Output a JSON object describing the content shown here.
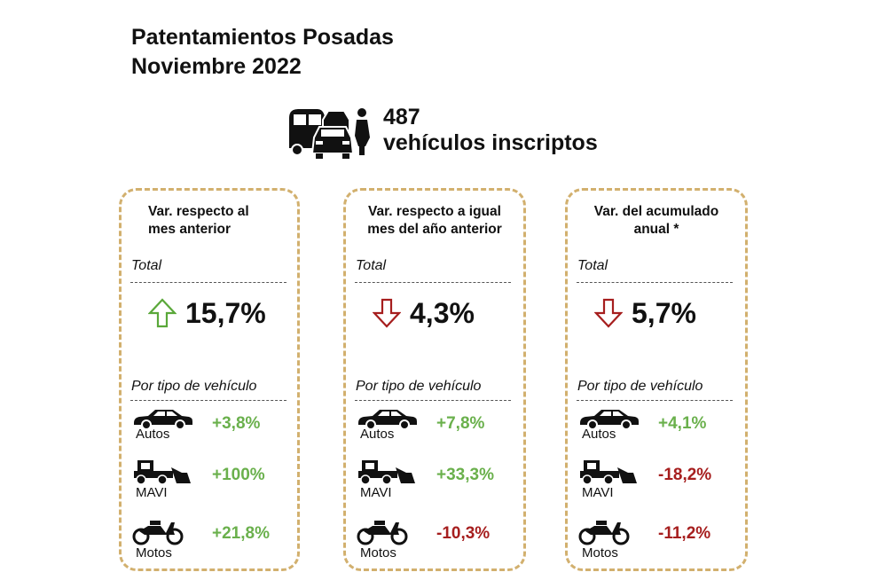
{
  "title": {
    "line1": "Patentamientos Posadas",
    "line2": "Noviembre 2022"
  },
  "summary": {
    "count": "487",
    "label": "vehículos inscriptos"
  },
  "colors": {
    "border": "#d2b06e",
    "positive": "#6ab04c",
    "negative": "#a61e1e",
    "arrow_up": "#5aa83a",
    "arrow_down": "#a61e1e"
  },
  "cards": [
    {
      "header_line1": "Var. respecto al",
      "header_line2": "mes anterior",
      "total_label": "Total",
      "total_value": "15,7%",
      "direction": "up",
      "by_type_label": "Por tipo de vehículo",
      "rows": [
        {
          "name": "Autos",
          "value": "+3,8%",
          "sign": "pos",
          "icon": "car-icon"
        },
        {
          "name": "MAVI",
          "value": "+100%",
          "sign": "pos",
          "icon": "machinery-icon"
        },
        {
          "name": "Motos",
          "value": "+21,8%",
          "sign": "pos",
          "icon": "motorcycle-icon"
        }
      ]
    },
    {
      "header_line1": "Var. respecto a igual",
      "header_line2": "mes del año anterior",
      "total_label": "Total",
      "total_value": "4,3%",
      "direction": "down",
      "by_type_label": "Por tipo de vehículo",
      "rows": [
        {
          "name": "Autos",
          "value": "+7,8%",
          "sign": "pos",
          "icon": "car-icon"
        },
        {
          "name": "MAVI",
          "value": "+33,3%",
          "sign": "pos",
          "icon": "machinery-icon"
        },
        {
          "name": "Motos",
          "value": "-10,3%",
          "sign": "neg",
          "icon": "motorcycle-icon"
        }
      ]
    },
    {
      "header_line1": "Var. del acumulado",
      "header_line2": "anual *",
      "total_label": "Total",
      "total_value": "5,7%",
      "direction": "down",
      "by_type_label": "Por tipo de vehículo",
      "rows": [
        {
          "name": "Autos",
          "value": "+4,1%",
          "sign": "pos",
          "icon": "car-icon"
        },
        {
          "name": "MAVI",
          "value": "-18,2%",
          "sign": "neg",
          "icon": "machinery-icon"
        },
        {
          "name": "Motos",
          "value": "-11,2%",
          "sign": "neg",
          "icon": "motorcycle-icon"
        }
      ]
    }
  ]
}
